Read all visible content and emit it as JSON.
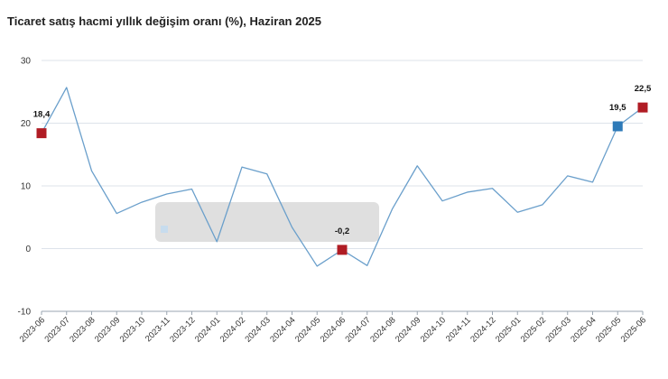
{
  "chart_data": {
    "type": "line",
    "title": "Ticaret satış hacmi yıllık değişim oranı (%), Haziran 2025",
    "xlabel": "",
    "ylabel": "",
    "ylim": [
      -10,
      30
    ],
    "yticks": [
      -10,
      0,
      10,
      20,
      30
    ],
    "grid": true,
    "categories": [
      "2023-06",
      "2023-07",
      "2023-08",
      "2023-09",
      "2023-10",
      "2023-11",
      "2023-12",
      "2024-01",
      "2024-02",
      "2024-03",
      "2024-04",
      "2024-05",
      "2024-06",
      "2024-07",
      "2024-08",
      "2024-09",
      "2024-10",
      "2024-11",
      "2024-12",
      "2025-01",
      "2025-02",
      "2025-03",
      "2025-04",
      "2025-05",
      "2025-06"
    ],
    "series": [
      {
        "color": "#6a9fcb",
        "values": [
          18.4,
          25.7,
          12.4,
          5.6,
          7.4,
          8.7,
          9.5,
          1.1,
          13.0,
          11.9,
          3.4,
          -2.8,
          -0.2,
          -2.7,
          6.3,
          13.2,
          7.6,
          9.0,
          9.6,
          5.8,
          7.0,
          11.6,
          10.6,
          19.5,
          22.5
        ]
      }
    ],
    "markers": [
      {
        "index": 0,
        "label": "18,4",
        "color": "#b01c24",
        "label_pos": "above"
      },
      {
        "index": 12,
        "label": "-0,2",
        "color": "#b01c24",
        "label_pos": "above"
      },
      {
        "index": 23,
        "label": "19,5",
        "color": "#2e7ab8",
        "label_pos": "above"
      },
      {
        "index": 24,
        "label": "22,5",
        "color": "#b01c24",
        "label_pos": "above"
      }
    ],
    "colors": {
      "line": "#6a9fcb",
      "grid": "#dde3ea",
      "axis": "#9aa5b1",
      "tooltip_bg": "#d9d9d9"
    }
  }
}
